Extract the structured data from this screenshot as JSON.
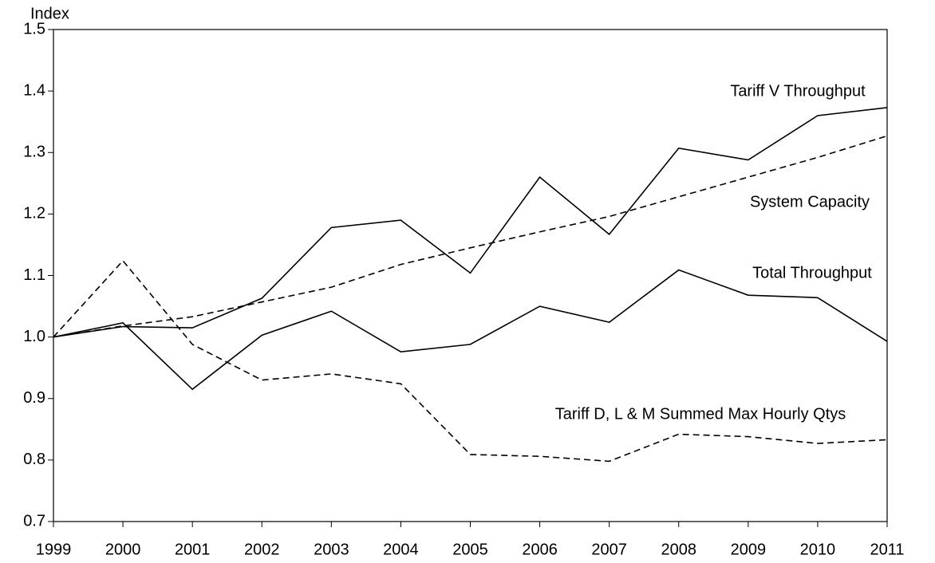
{
  "chart_data": {
    "type": "line",
    "y_label": "Index",
    "x": [
      1999,
      2000,
      2001,
      2002,
      2003,
      2004,
      2005,
      2006,
      2007,
      2008,
      2009,
      2010,
      2011
    ],
    "xlim": [
      1999,
      2011
    ],
    "xticks": [
      1999,
      2000,
      2001,
      2002,
      2003,
      2004,
      2005,
      2006,
      2007,
      2008,
      2009,
      2010,
      2011
    ],
    "ylim": [
      0.7,
      1.5
    ],
    "yticks": [
      0.7,
      0.8,
      0.9,
      {
        "value": 1,
        "label": "1.0"
      },
      1.1,
      1.2,
      1.3,
      1.4,
      1.5
    ],
    "series": [
      {
        "name": "Tariff V Throughput",
        "color": "#000000",
        "style": "solid",
        "values": [
          1.0,
          1.017,
          1.015,
          1.063,
          1.178,
          1.19,
          1.104,
          1.26,
          1.167,
          1.307,
          1.288,
          1.36,
          1.373
        ]
      },
      {
        "name": "System Capacity",
        "color": "#000000",
        "style": "dashed",
        "values": [
          1.0,
          1.018,
          1.033,
          1.057,
          1.081,
          1.118,
          1.145,
          1.171,
          1.196,
          1.228,
          1.26,
          1.292,
          1.327
        ]
      },
      {
        "name": "Total Throughput",
        "color": "#000000",
        "style": "solid",
        "values": [
          1.0,
          1.023,
          0.915,
          1.003,
          1.042,
          0.976,
          0.988,
          1.05,
          1.024,
          1.109,
          1.068,
          1.064,
          0.993
        ]
      },
      {
        "name": "Tariff D, L & M Summed Max Hourly Qtys",
        "color": "#000000",
        "style": "dashed",
        "values": [
          1.0,
          1.124,
          0.988,
          0.93,
          0.94,
          0.924,
          0.809,
          0.806,
          0.798,
          0.842,
          0.838,
          0.827,
          0.833
        ]
      }
    ]
  }
}
